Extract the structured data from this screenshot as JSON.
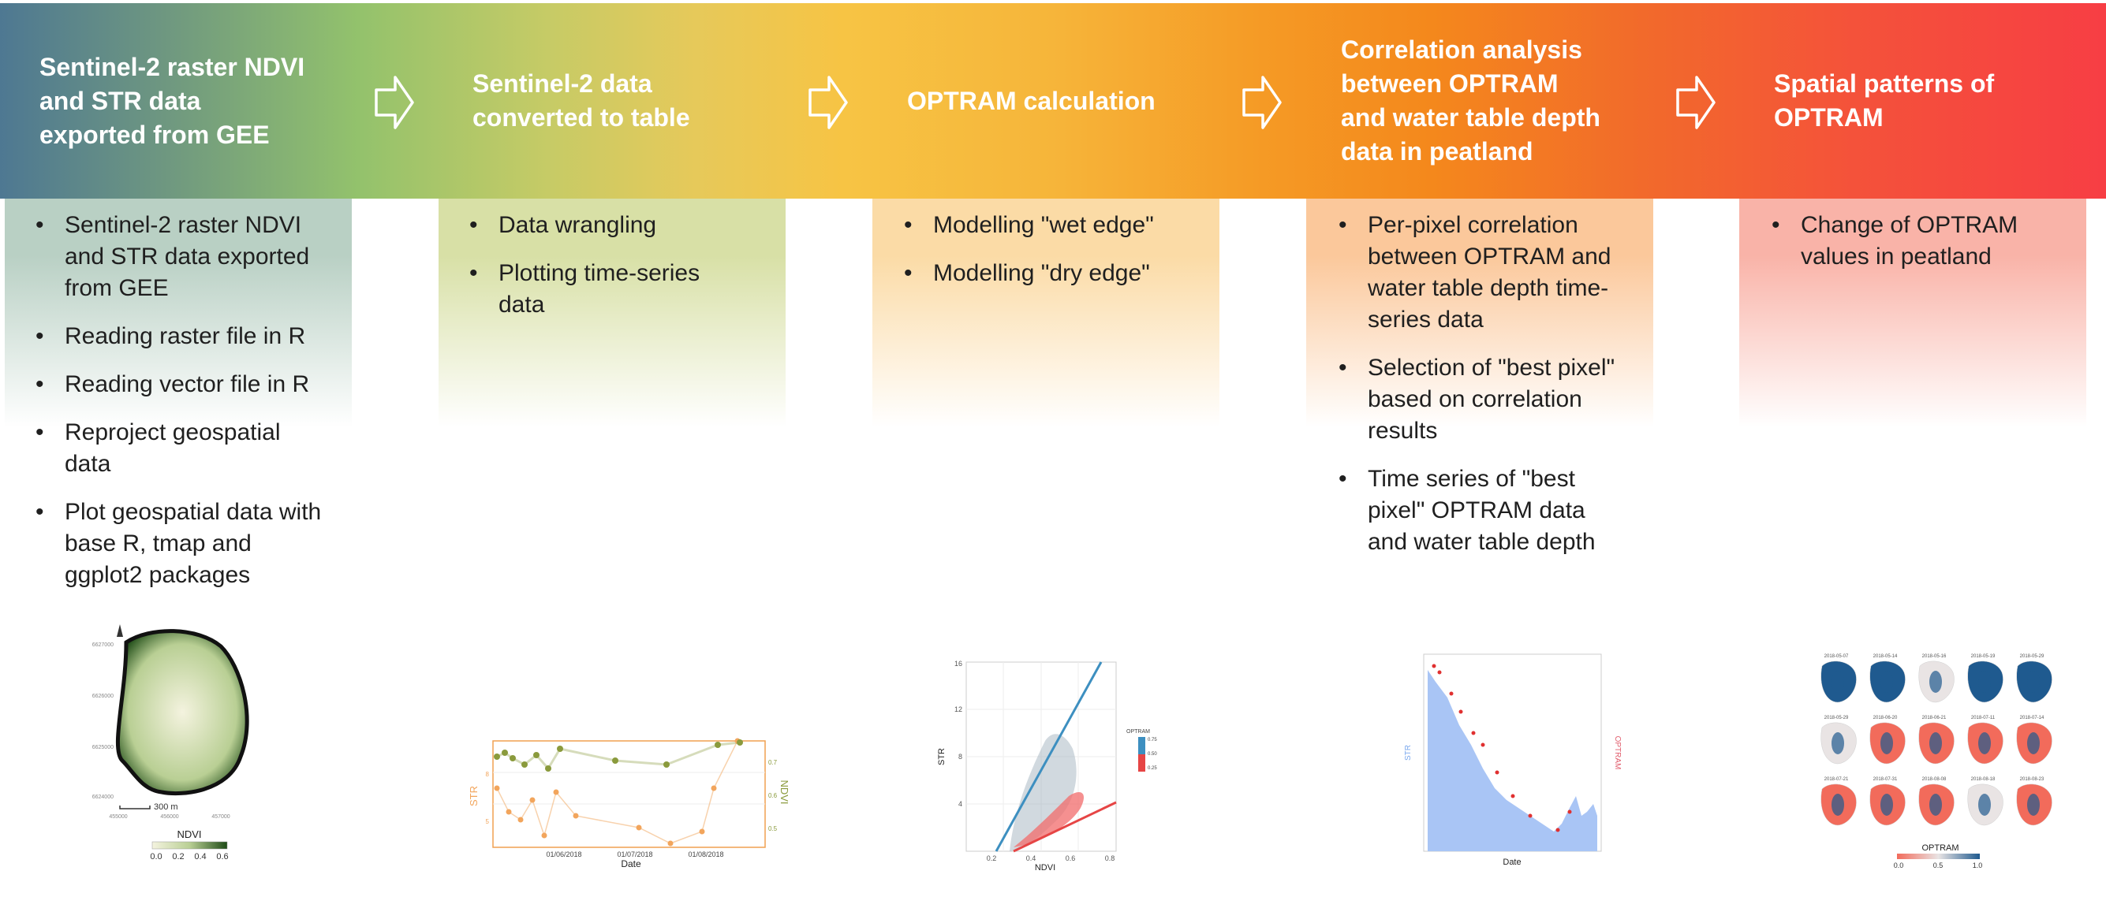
{
  "stages": [
    {
      "title_lines": [
        "Sentinel-2 raster NDVI",
        "and STR data",
        "exported from GEE"
      ],
      "bullets": [
        "Sentinel-2 raster NDVI and STR data exported from GEE",
        "Reading raster file in R",
        "Reading vector file in R",
        "Reproject geospatial data",
        "Plot geospatial data with base R, tmap and ggplot2 packages"
      ],
      "panel_color": "#b9d0c4"
    },
    {
      "title_lines": [
        "Sentinel-2 data",
        "converted to table"
      ],
      "bullets": [
        "Data wrangling",
        "Plotting time-series data"
      ],
      "panel_color": "#d8e0a6"
    },
    {
      "title_lines": [
        "OPTRAM calculation"
      ],
      "bullets": [
        "Modelling \"wet edge\"",
        "Modelling \"dry edge\""
      ],
      "panel_color": "#fbdba6"
    },
    {
      "title_lines": [
        "Correlation analysis",
        "between OPTRAM",
        "and water table depth",
        "data in peatland"
      ],
      "bullets": [
        "Per-pixel correlation between OPTRAM and water table depth time-series data",
        "Selection of \"best pixel\" based on correlation results",
        "Time series of \"best pixel\" OPTRAM data and water table depth"
      ],
      "panel_color": "#fbc89b"
    },
    {
      "title_lines": [
        "Spatial patterns of",
        "OPTRAM"
      ],
      "bullets": [
        "Change of OPTRAM values in peatland"
      ],
      "panel_color": "#f9b3a8"
    }
  ],
  "thumbnails": {
    "ndvi_map": {
      "y_ticks": [
        "6627000",
        "6626000",
        "6625000",
        "6624000"
      ],
      "x_ticks": [
        "455000",
        "456000",
        "457000"
      ],
      "scale_label": "300 m",
      "legend_title": "NDVI",
      "legend_ticks": [
        "0.0",
        "0.2",
        "0.4",
        "0.6"
      ],
      "colors": {
        "low": "#f4f3df",
        "mid": "#b9cf94",
        "high": "#1e4b16"
      }
    },
    "timeseries": {
      "x_label": "Date",
      "x_ticks": [
        "01/06/2018",
        "01/07/2018",
        "01/08/2018"
      ],
      "left_label": "STR",
      "right_label": "NDVI",
      "left_ticks": [
        "8",
        "5"
      ],
      "right_ticks": [
        "0.7",
        "0.6",
        "0.5"
      ],
      "colors": {
        "str": "#f2a55c",
        "ndvi": "#8a9a3c"
      }
    },
    "optram_scatter": {
      "x_label": "NDVI",
      "y_label": "STR",
      "x_ticks": [
        "0.2",
        "0.4",
        "0.6",
        "0.8"
      ],
      "y_ticks": [
        "16",
        "12",
        "8",
        "4"
      ],
      "legend_title": "OPTRAM",
      "legend_ticks": [
        "0.75",
        "0.50",
        "0.25"
      ],
      "colors": {
        "wet_edge": "#3d8fc0",
        "dry_edge": "#e64545",
        "cloud": "#9aaab8"
      }
    },
    "correlation_ts": {
      "x_label": "Date",
      "left_label": "STR",
      "right_label": "OPTRAM",
      "colors": {
        "area": "#a9c5f5",
        "points": "#e03030"
      }
    },
    "spatial_maps": {
      "dates": [
        "2018-05-07",
        "2018-05-14",
        "2018-05-16",
        "2018-05-19",
        "2018-05-29",
        "2018-05-29",
        "2018-06-20",
        "2018-06-21",
        "2018-07-11",
        "2018-07-14",
        "2018-07-21",
        "2018-07-31",
        "2018-08-08",
        "2018-08-18",
        "2018-08-23"
      ],
      "legend_title": "OPTRAM",
      "legend_ticks": [
        "0.0",
        "0.5",
        "1.0"
      ],
      "colors": {
        "low": "#f26b5b",
        "mid": "#e9e4e4",
        "high": "#1f5a8f"
      }
    }
  }
}
